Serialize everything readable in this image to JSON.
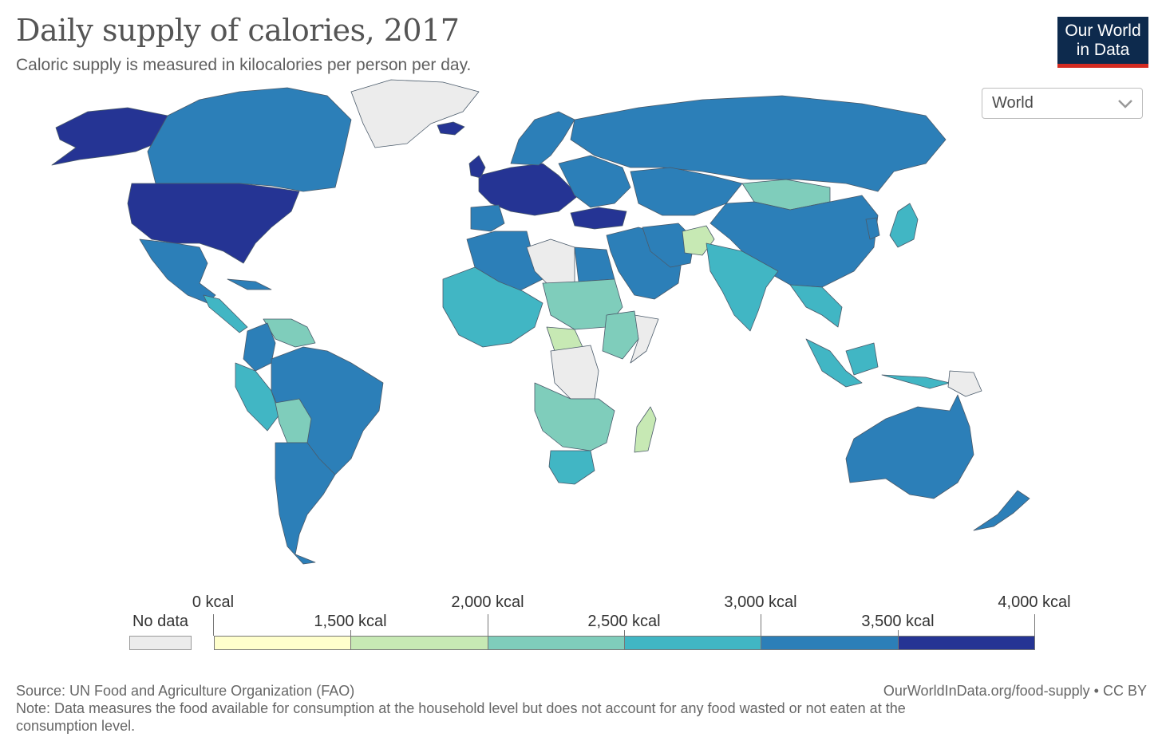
{
  "header": {
    "title": "Daily supply of calories, 2017",
    "subtitle": "Caloric supply is measured in kilocalories per person per day."
  },
  "logo": {
    "line1": "Our World",
    "line2": "in Data"
  },
  "region_select": {
    "value": "World"
  },
  "legend": {
    "no_data_label": "No data",
    "labels": [
      "0 kcal",
      "1,500 kcal",
      "2,000 kcal",
      "2,500 kcal",
      "3,000 kcal",
      "3,500 kcal",
      "4,000 kcal"
    ],
    "bins": [
      {
        "from": 0,
        "to": 1500,
        "color": "#ffffcc"
      },
      {
        "from": 1500,
        "to": 2000,
        "color": "#c7e9b4"
      },
      {
        "from": 2000,
        "to": 2500,
        "color": "#7fcdbb"
      },
      {
        "from": 2500,
        "to": 3000,
        "color": "#41b6c4"
      },
      {
        "from": 3000,
        "to": 3500,
        "color": "#2c7fb8"
      },
      {
        "from": 3500,
        "to": 4000,
        "color": "#253494"
      }
    ],
    "no_data_color": "#ececec"
  },
  "footer": {
    "source": "Source: UN Food and Agriculture Organization (FAO)",
    "url": "OurWorldInData.org/food-supply • CC BY",
    "note_line1": "Note: Data measures the food available for consumption at the household level but does not account for any food wasted or not eaten at the",
    "note_line2": "consumption level."
  }
}
